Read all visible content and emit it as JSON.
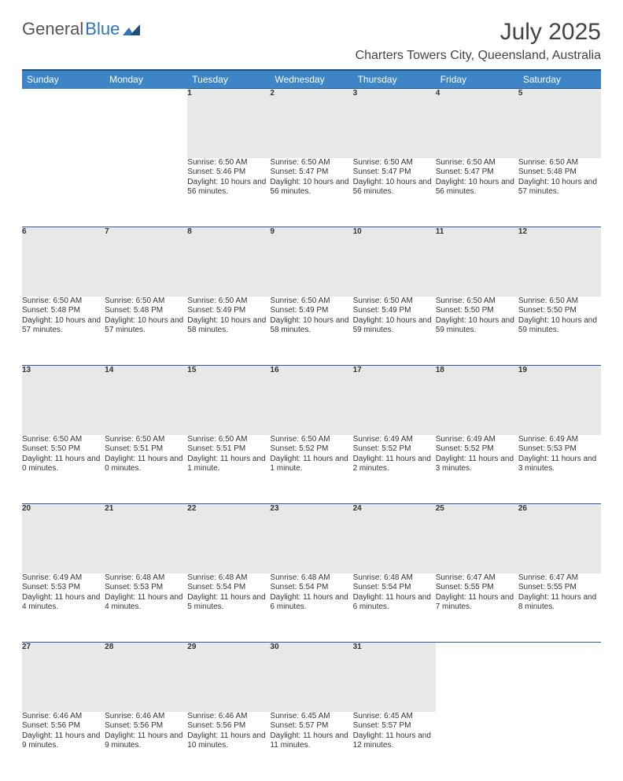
{
  "logo": {
    "text1": "General",
    "text2": "Blue"
  },
  "title": "July 2025",
  "location": "Charters Towers City, Queensland, Australia",
  "header_bg": "#3d85c6",
  "header_border": "#1f4e79",
  "daynum_bg": "#e8e8e8",
  "day_headers": [
    "Sunday",
    "Monday",
    "Tuesday",
    "Wednesday",
    "Thursday",
    "Friday",
    "Saturday"
  ],
  "weeks": [
    [
      null,
      null,
      {
        "n": "1",
        "sr": "6:50 AM",
        "ss": "5:46 PM",
        "dl": "10 hours and 56 minutes."
      },
      {
        "n": "2",
        "sr": "6:50 AM",
        "ss": "5:47 PM",
        "dl": "10 hours and 56 minutes."
      },
      {
        "n": "3",
        "sr": "6:50 AM",
        "ss": "5:47 PM",
        "dl": "10 hours and 56 minutes."
      },
      {
        "n": "4",
        "sr": "6:50 AM",
        "ss": "5:47 PM",
        "dl": "10 hours and 56 minutes."
      },
      {
        "n": "5",
        "sr": "6:50 AM",
        "ss": "5:48 PM",
        "dl": "10 hours and 57 minutes."
      }
    ],
    [
      {
        "n": "6",
        "sr": "6:50 AM",
        "ss": "5:48 PM",
        "dl": "10 hours and 57 minutes."
      },
      {
        "n": "7",
        "sr": "6:50 AM",
        "ss": "5:48 PM",
        "dl": "10 hours and 57 minutes."
      },
      {
        "n": "8",
        "sr": "6:50 AM",
        "ss": "5:49 PM",
        "dl": "10 hours and 58 minutes."
      },
      {
        "n": "9",
        "sr": "6:50 AM",
        "ss": "5:49 PM",
        "dl": "10 hours and 58 minutes."
      },
      {
        "n": "10",
        "sr": "6:50 AM",
        "ss": "5:49 PM",
        "dl": "10 hours and 59 minutes."
      },
      {
        "n": "11",
        "sr": "6:50 AM",
        "ss": "5:50 PM",
        "dl": "10 hours and 59 minutes."
      },
      {
        "n": "12",
        "sr": "6:50 AM",
        "ss": "5:50 PM",
        "dl": "10 hours and 59 minutes."
      }
    ],
    [
      {
        "n": "13",
        "sr": "6:50 AM",
        "ss": "5:50 PM",
        "dl": "11 hours and 0 minutes."
      },
      {
        "n": "14",
        "sr": "6:50 AM",
        "ss": "5:51 PM",
        "dl": "11 hours and 0 minutes."
      },
      {
        "n": "15",
        "sr": "6:50 AM",
        "ss": "5:51 PM",
        "dl": "11 hours and 1 minute."
      },
      {
        "n": "16",
        "sr": "6:50 AM",
        "ss": "5:52 PM",
        "dl": "11 hours and 1 minute."
      },
      {
        "n": "17",
        "sr": "6:49 AM",
        "ss": "5:52 PM",
        "dl": "11 hours and 2 minutes."
      },
      {
        "n": "18",
        "sr": "6:49 AM",
        "ss": "5:52 PM",
        "dl": "11 hours and 3 minutes."
      },
      {
        "n": "19",
        "sr": "6:49 AM",
        "ss": "5:53 PM",
        "dl": "11 hours and 3 minutes."
      }
    ],
    [
      {
        "n": "20",
        "sr": "6:49 AM",
        "ss": "5:53 PM",
        "dl": "11 hours and 4 minutes."
      },
      {
        "n": "21",
        "sr": "6:48 AM",
        "ss": "5:53 PM",
        "dl": "11 hours and 4 minutes."
      },
      {
        "n": "22",
        "sr": "6:48 AM",
        "ss": "5:54 PM",
        "dl": "11 hours and 5 minutes."
      },
      {
        "n": "23",
        "sr": "6:48 AM",
        "ss": "5:54 PM",
        "dl": "11 hours and 6 minutes."
      },
      {
        "n": "24",
        "sr": "6:48 AM",
        "ss": "5:54 PM",
        "dl": "11 hours and 6 minutes."
      },
      {
        "n": "25",
        "sr": "6:47 AM",
        "ss": "5:55 PM",
        "dl": "11 hours and 7 minutes."
      },
      {
        "n": "26",
        "sr": "6:47 AM",
        "ss": "5:55 PM",
        "dl": "11 hours and 8 minutes."
      }
    ],
    [
      {
        "n": "27",
        "sr": "6:46 AM",
        "ss": "5:56 PM",
        "dl": "11 hours and 9 minutes."
      },
      {
        "n": "28",
        "sr": "6:46 AM",
        "ss": "5:56 PM",
        "dl": "11 hours and 9 minutes."
      },
      {
        "n": "29",
        "sr": "6:46 AM",
        "ss": "5:56 PM",
        "dl": "11 hours and 10 minutes."
      },
      {
        "n": "30",
        "sr": "6:45 AM",
        "ss": "5:57 PM",
        "dl": "11 hours and 11 minutes."
      },
      {
        "n": "31",
        "sr": "6:45 AM",
        "ss": "5:57 PM",
        "dl": "11 hours and 12 minutes."
      },
      null,
      null
    ]
  ]
}
